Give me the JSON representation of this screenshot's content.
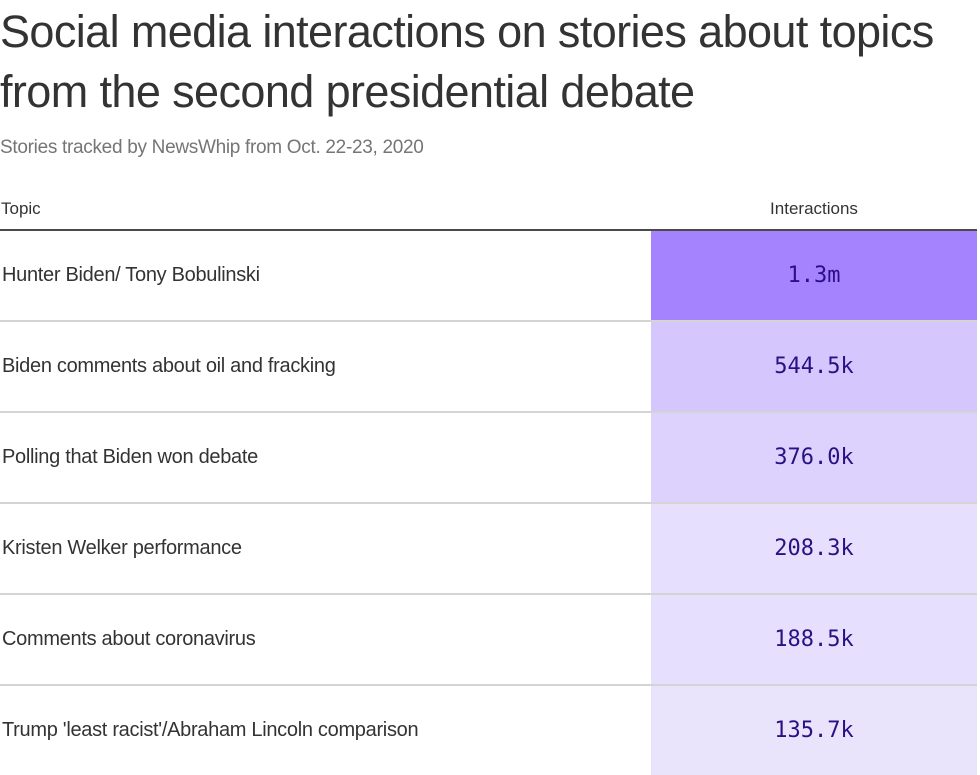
{
  "chart_data": {
    "type": "table",
    "title": "Social media interactions on stories about topics from the second presidential debate",
    "subtitle": "Stories tracked by NewsWhip from Oct. 22-23, 2020",
    "columns": [
      "Topic",
      "Interactions"
    ],
    "rows": [
      {
        "topic": "Hunter Biden/ Tony Bobulinski",
        "label": "1.3m",
        "value": 1300000,
        "color": "#a583ff"
      },
      {
        "topic": "Biden comments about oil and fracking",
        "label": "544.5k",
        "value": 544500,
        "color": "#d5c6fe"
      },
      {
        "topic": "Polling that Biden won debate",
        "label": "376.0k",
        "value": 376000,
        "color": "#dcd2fd"
      },
      {
        "topic": "Kristen Welker performance",
        "label": "208.3k",
        "value": 208300,
        "color": "#e6dffd"
      },
      {
        "topic": "Comments about coronavirus",
        "label": "188.5k",
        "value": 188500,
        "color": "#e6dffd"
      },
      {
        "topic": "Trump 'least racist'/Abraham Lincoln comparison",
        "label": "135.7k",
        "value": 135700,
        "color": "#e9e4fc"
      }
    ]
  }
}
